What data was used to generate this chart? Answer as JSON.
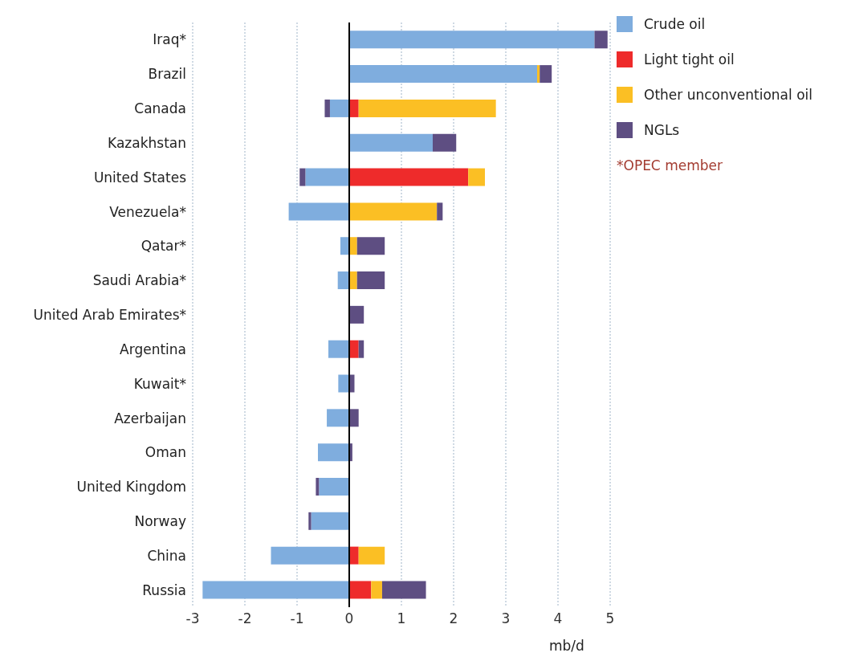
{
  "chart_data": {
    "type": "bar",
    "orientation": "horizontal",
    "stacked": true,
    "categories": [
      "Iraq*",
      "Brazil",
      "Canada",
      "Kazakhstan",
      "United States",
      "Venezuela*",
      "Qatar*",
      "Saudi Arabia*",
      "United Arab Emirates*",
      "Argentina",
      "Kuwait*",
      "Azerbaijan",
      "Oman",
      "United Kingdom",
      "Norway",
      "China",
      "Russia"
    ],
    "series": [
      {
        "name": "Crude oil",
        "color": "#7fadde",
        "values": [
          4.7,
          3.6,
          -0.37,
          1.6,
          -0.84,
          -1.16,
          -0.17,
          -0.22,
          null,
          -0.4,
          -0.21,
          -0.43,
          -0.6,
          -0.58,
          -0.73,
          -1.5,
          -2.81
        ]
      },
      {
        "name": "Light tight oil",
        "color": "#ee2b2b",
        "values": [
          null,
          null,
          0.18,
          null,
          2.28,
          null,
          null,
          null,
          null,
          0.18,
          null,
          null,
          null,
          null,
          null,
          0.18,
          0.42
        ]
      },
      {
        "name": "Other unconventional oil",
        "color": "#fbbf24",
        "values": [
          null,
          0.05,
          2.63,
          null,
          0.32,
          1.68,
          0.15,
          0.15,
          null,
          null,
          null,
          null,
          null,
          null,
          null,
          0.5,
          0.21
        ]
      },
      {
        "name": "NGLs",
        "color": "#5e4e82",
        "values": [
          0.25,
          0.23,
          -0.1,
          0.45,
          -0.11,
          0.11,
          0.53,
          0.53,
          0.28,
          0.1,
          0.1,
          0.18,
          0.06,
          -0.06,
          -0.05,
          null,
          0.84
        ]
      }
    ],
    "xlim": [
      -3,
      5
    ],
    "xticks": [
      -3,
      -2,
      -1,
      0,
      1,
      2,
      3,
      4,
      5
    ],
    "xlabel": "mb/d",
    "grid": "x",
    "legend": "top right",
    "annotations": [
      "*OPEC member"
    ]
  }
}
